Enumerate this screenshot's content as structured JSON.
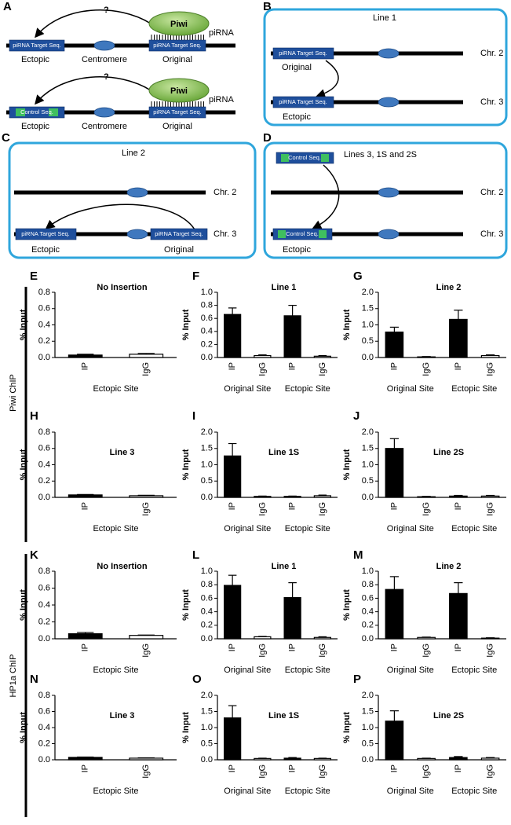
{
  "panels": {
    "A": {
      "label": "A",
      "rows": [
        {
          "question": "?",
          "protein": "Piwi",
          "rna": "piRNA",
          "ectopic_seq": "piRNA Target Seq.",
          "original_seq": "piRNA Target Seq.",
          "ectopic": "Ectopic",
          "centromere": "Centromere",
          "original": "Original"
        },
        {
          "question": "?",
          "protein": "Piwi",
          "rna": "piRNA",
          "ectopic_seq": "Control Seq.",
          "original_seq": "piRNA Target Seq.",
          "ectopic": "Ectopic",
          "centromere": "Centromere",
          "original": "Original"
        }
      ]
    },
    "B": {
      "label": "B",
      "title": "Line 1",
      "top_seq": "piRNA Target Seq.",
      "top_site": "Original",
      "top_chr": "Chr. 2",
      "bottom_seq": "piRNA Target Seq.",
      "bottom_chr": "Chr. 3",
      "bottom_site": "Ectopic"
    },
    "C": {
      "label": "C",
      "title": "Line 2",
      "top_chr": "Chr. 2",
      "ectopic_seq": "piRNA Target Seq.",
      "original_seq": "piRNA Target Seq.",
      "bottom_chr": "Chr. 3",
      "ectopic": "Ectopic",
      "original": "Original"
    },
    "D": {
      "label": "D",
      "title": "Lines 3, 1S and 2S",
      "donor_seq": "Control Seq.",
      "top_chr": "Chr. 2",
      "bottom_seq": "Control Seq.",
      "bottom_chr": "Chr. 3",
      "bottom_site": "Ectopic"
    }
  },
  "row_labels": [
    "Piwi ChIP",
    "HP1a ChIP"
  ],
  "chart_data": [
    {
      "type": "bar",
      "label": "E",
      "title": "No Insertion",
      "y_label": "% Input",
      "categories": [
        "IP",
        "IgG"
      ],
      "groups": [
        "Ectopic Site"
      ],
      "values": [
        0.03,
        0.04
      ],
      "errors": [
        0.01,
        0.01
      ],
      "colors": [
        "#000000",
        "#ffffff"
      ],
      "ylim": [
        0,
        0.8
      ],
      "yticks": [
        {
          "value": 0,
          "label": "0.0"
        },
        0.2,
        0.4,
        0.6,
        0.8
      ]
    },
    {
      "type": "bar",
      "label": "F",
      "title": "Line 1",
      "y_label": "% Input",
      "categories": [
        "IP",
        "IgG",
        "IP",
        "IgG"
      ],
      "groups": [
        "Original Site",
        "Ectopic Site"
      ],
      "values": [
        0.66,
        0.03,
        0.64,
        0.02
      ],
      "errors": [
        0.1,
        0.01,
        0.16,
        0.01
      ],
      "colors": [
        "#000000",
        "#ffffff",
        "#000000",
        "#ffffff"
      ],
      "ylim": [
        0,
        1
      ],
      "yticks": [
        {
          "value": 0,
          "label": "0.0"
        },
        0.2,
        0.4,
        0.6,
        0.8,
        {
          "value": 1,
          "label": "1.0"
        }
      ]
    },
    {
      "type": "bar",
      "label": "G",
      "title": "Line 2",
      "y_label": "% Input",
      "categories": [
        "IP",
        "IgG",
        "IP",
        "IgG"
      ],
      "groups": [
        "Original Site",
        "Ectopic Site"
      ],
      "values": [
        0.78,
        0.02,
        1.17,
        0.06
      ],
      "errors": [
        0.15,
        0.01,
        0.28,
        0.02
      ],
      "colors": [
        "#000000",
        "#ffffff",
        "#000000",
        "#ffffff"
      ],
      "ylim": [
        0,
        2
      ],
      "yticks": [
        {
          "value": 0,
          "label": "0.0"
        },
        0.5,
        {
          "value": 1,
          "label": "1.0"
        },
        1.5,
        {
          "value": 2,
          "label": "2.0"
        }
      ]
    },
    {
      "type": "bar",
      "label": "H",
      "title": "Line 3",
      "y_label": "% Input",
      "categories": [
        "IP",
        "IgG"
      ],
      "groups": [
        "Ectopic Site"
      ],
      "values": [
        0.03,
        0.02
      ],
      "errors": [
        0.005,
        0.005
      ],
      "colors": [
        "#000000",
        "#ffffff"
      ],
      "ylim": [
        0,
        0.8
      ],
      "yticks": [
        {
          "value": 0,
          "label": "0.0"
        },
        0.2,
        0.4,
        0.6,
        0.8
      ]
    },
    {
      "type": "bar",
      "label": "I",
      "title": "Line 1S",
      "y_label": "% Input",
      "categories": [
        "IP",
        "IgG",
        "IP",
        "IgG"
      ],
      "groups": [
        "Original Site",
        "Ectopic Site"
      ],
      "values": [
        1.27,
        0.03,
        0.03,
        0.05
      ],
      "errors": [
        0.38,
        0.01,
        0.01,
        0.02
      ],
      "colors": [
        "#000000",
        "#ffffff",
        "#000000",
        "#ffffff"
      ],
      "ylim": [
        0,
        2
      ],
      "yticks": [
        {
          "value": 0,
          "label": "0.0"
        },
        0.5,
        {
          "value": 1,
          "label": "1.0"
        },
        1.5,
        {
          "value": 2,
          "label": "2.0"
        }
      ]
    },
    {
      "type": "bar",
      "label": "J",
      "title": "Line 2S",
      "y_label": "% Input",
      "categories": [
        "IP",
        "IgG",
        "IP",
        "IgG"
      ],
      "groups": [
        "Original Site",
        "Ectopic Site"
      ],
      "values": [
        1.5,
        0.02,
        0.04,
        0.04
      ],
      "errors": [
        0.3,
        0.01,
        0.02,
        0.02
      ],
      "colors": [
        "#000000",
        "#ffffff",
        "#000000",
        "#ffffff"
      ],
      "ylim": [
        0,
        2
      ],
      "yticks": [
        {
          "value": 0,
          "label": "0.0"
        },
        0.5,
        {
          "value": 1,
          "label": "1.0"
        },
        1.5,
        {
          "value": 2,
          "label": "2.0"
        }
      ]
    },
    {
      "type": "bar",
      "label": "K",
      "title": "No Insertion",
      "y_label": "% Input",
      "categories": [
        "IP",
        "IgG"
      ],
      "groups": [
        "Ectopic Site"
      ],
      "values": [
        0.06,
        0.04
      ],
      "errors": [
        0.015,
        0.005
      ],
      "colors": [
        "#000000",
        "#ffffff"
      ],
      "ylim": [
        0,
        0.8
      ],
      "yticks": [
        {
          "value": 0,
          "label": "0.0"
        },
        0.2,
        0.4,
        0.6,
        0.8
      ]
    },
    {
      "type": "bar",
      "label": "L",
      "title": "Line 1",
      "y_label": "% Input",
      "categories": [
        "IP",
        "IgG",
        "IP",
        "IgG"
      ],
      "groups": [
        "Original Site",
        "Ectopic Site"
      ],
      "values": [
        0.79,
        0.03,
        0.61,
        0.02
      ],
      "errors": [
        0.15,
        0.005,
        0.22,
        0.01
      ],
      "colors": [
        "#000000",
        "#ffffff",
        "#000000",
        "#ffffff"
      ],
      "ylim": [
        0,
        1
      ],
      "yticks": [
        {
          "value": 0,
          "label": "0.0"
        },
        0.2,
        0.4,
        0.6,
        0.8,
        {
          "value": 1,
          "label": "1.0"
        }
      ]
    },
    {
      "type": "bar",
      "label": "M",
      "title": "Line 2",
      "y_label": "% Input",
      "categories": [
        "IP",
        "IgG",
        "IP",
        "IgG"
      ],
      "groups": [
        "Original Site",
        "Ectopic Site"
      ],
      "values": [
        0.73,
        0.02,
        0.67,
        0.01
      ],
      "errors": [
        0.19,
        0.005,
        0.16,
        0.005
      ],
      "colors": [
        "#000000",
        "#ffffff",
        "#000000",
        "#ffffff"
      ],
      "ylim": [
        0,
        1
      ],
      "yticks": [
        {
          "value": 0,
          "label": "0.0"
        },
        0.2,
        0.4,
        0.6,
        0.8,
        {
          "value": 1,
          "label": "1.0"
        }
      ]
    },
    {
      "type": "bar",
      "label": "N",
      "title": "Line 3",
      "y_label": "% Input",
      "categories": [
        "IP",
        "IgG"
      ],
      "groups": [
        "Ectopic Site"
      ],
      "values": [
        0.03,
        0.02
      ],
      "errors": [
        0.005,
        0.005
      ],
      "colors": [
        "#000000",
        "#ffffff"
      ],
      "ylim": [
        0,
        0.8
      ],
      "yticks": [
        {
          "value": 0,
          "label": "0.0"
        },
        0.2,
        0.4,
        0.6,
        0.8
      ]
    },
    {
      "type": "bar",
      "label": "O",
      "title": "Line 1S",
      "y_label": "% Input",
      "categories": [
        "IP",
        "IgG",
        "IP",
        "IgG"
      ],
      "groups": [
        "Original Site",
        "Ectopic Site"
      ],
      "values": [
        1.3,
        0.04,
        0.05,
        0.04
      ],
      "errors": [
        0.38,
        0.01,
        0.02,
        0.01
      ],
      "colors": [
        "#000000",
        "#ffffff",
        "#000000",
        "#ffffff"
      ],
      "ylim": [
        0,
        2
      ],
      "yticks": [
        {
          "value": 0,
          "label": "0.0"
        },
        0.5,
        {
          "value": 1,
          "label": "1.0"
        },
        1.5,
        {
          "value": 2,
          "label": "2.0"
        }
      ]
    },
    {
      "type": "bar",
      "label": "P",
      "title": "Line 2S",
      "y_label": "% Input",
      "categories": [
        "IP",
        "IgG",
        "IP",
        "IgG"
      ],
      "groups": [
        "Original Site",
        "Ectopic Site"
      ],
      "values": [
        1.2,
        0.04,
        0.07,
        0.05
      ],
      "errors": [
        0.32,
        0.01,
        0.03,
        0.02
      ],
      "colors": [
        "#000000",
        "#ffffff",
        "#000000",
        "#ffffff"
      ],
      "ylim": [
        0,
        2
      ],
      "yticks": [
        {
          "value": 0,
          "label": "0.0"
        },
        0.5,
        {
          "value": 1,
          "label": "1.0"
        },
        1.5,
        {
          "value": 2,
          "label": "2.0"
        }
      ]
    }
  ]
}
